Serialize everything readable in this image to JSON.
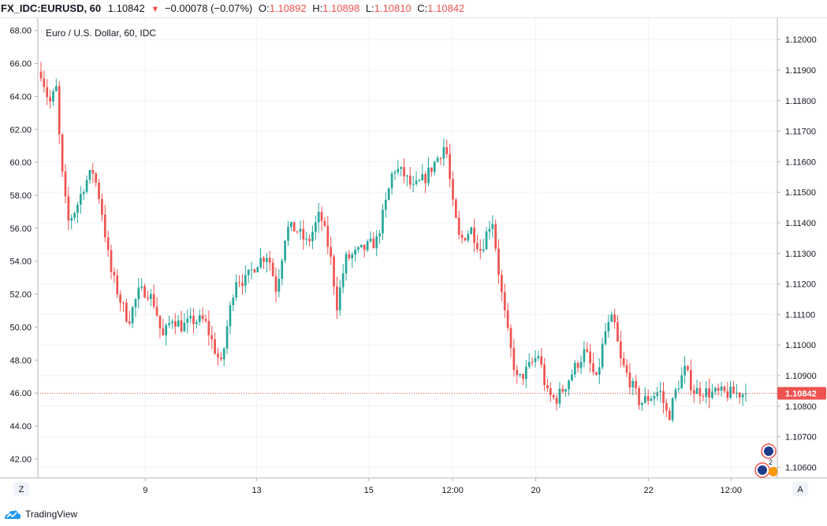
{
  "header": {
    "symbol": "FX_IDC:EURUSD, 60",
    "last": "1.10842",
    "change_arrow": "▼",
    "change": "−0.00078 (−0.07%)",
    "o_label": "O:",
    "o_value": "1.10892",
    "h_label": "H:",
    "h_value": "1.10898",
    "l_label": "L:",
    "l_value": "1.10810",
    "c_label": "C:",
    "c_value": "1.10842"
  },
  "chart_data": {
    "type": "candlestick",
    "title": "Euro / U.S. Dollar, 60, IDC",
    "y_right": {
      "ylim": [
        1.10565,
        1.1207
      ],
      "ticks": [
        "1.12000",
        "1.11900",
        "1.11800",
        "1.11700",
        "1.11600",
        "1.11500",
        "1.11400",
        "1.11300",
        "1.11200",
        "1.11100",
        "1.11000",
        "1.10900",
        "1.10800",
        "1.10700",
        "1.10600"
      ]
    },
    "y_left": {
      "ylim": [
        40.85,
        68.75
      ],
      "ticks": [
        "68.00",
        "66.00",
        "64.00",
        "62.00",
        "60.00",
        "58.00",
        "56.00",
        "54.00",
        "52.00",
        "50.00",
        "48.00",
        "46.00",
        "44.00",
        "42.00"
      ]
    },
    "x_ticks": [
      {
        "label": "9",
        "t": 0.148
      },
      {
        "label": "13",
        "t": 0.306
      },
      {
        "label": "15",
        "t": 0.465
      },
      {
        "label": "12:00",
        "t": 0.584
      },
      {
        "label": "20",
        "t": 0.702
      },
      {
        "label": "22",
        "t": 0.862
      },
      {
        "label": "12:00",
        "t": 0.979
      }
    ],
    "last_price": 1.10842,
    "last_price_label": "1.10842",
    "up_color": "#26a69a",
    "down_color": "#ef5350",
    "grid": true,
    "close_path": [
      [
        0.0,
        1.11895
      ],
      [
        0.012,
        1.1179
      ],
      [
        0.022,
        1.1184
      ],
      [
        0.028,
        1.116
      ],
      [
        0.038,
        1.114
      ],
      [
        0.05,
        1.1145
      ],
      [
        0.062,
        1.1153
      ],
      [
        0.074,
        1.1157
      ],
      [
        0.085,
        1.1146
      ],
      [
        0.098,
        1.1125
      ],
      [
        0.112,
        1.1115
      ],
      [
        0.124,
        1.1108
      ],
      [
        0.138,
        1.1117
      ],
      [
        0.15,
        1.1118
      ],
      [
        0.162,
        1.1113
      ],
      [
        0.172,
        1.1102
      ],
      [
        0.186,
        1.1109
      ],
      [
        0.2,
        1.1106
      ],
      [
        0.216,
        1.1108
      ],
      [
        0.232,
        1.1108
      ],
      [
        0.246,
        1.1099
      ],
      [
        0.256,
        1.1093
      ],
      [
        0.264,
        1.1106
      ],
      [
        0.276,
        1.1122
      ],
      [
        0.29,
        1.1121
      ],
      [
        0.306,
        1.1127
      ],
      [
        0.322,
        1.113
      ],
      [
        0.334,
        1.1118
      ],
      [
        0.348,
        1.1138
      ],
      [
        0.362,
        1.1138
      ],
      [
        0.378,
        1.1133
      ],
      [
        0.396,
        1.1143
      ],
      [
        0.41,
        1.113
      ],
      [
        0.42,
        1.1113
      ],
      [
        0.432,
        1.1128
      ],
      [
        0.448,
        1.113
      ],
      [
        0.462,
        1.1132
      ],
      [
        0.476,
        1.1134
      ],
      [
        0.49,
        1.1147
      ],
      [
        0.5,
        1.1158
      ],
      [
        0.514,
        1.1156
      ],
      [
        0.528,
        1.1151
      ],
      [
        0.546,
        1.1155
      ],
      [
        0.562,
        1.1161
      ],
      [
        0.574,
        1.1166
      ],
      [
        0.584,
        1.1146
      ],
      [
        0.594,
        1.1134
      ],
      [
        0.61,
        1.1138
      ],
      [
        0.624,
        1.1131
      ],
      [
        0.64,
        1.1142
      ],
      [
        0.652,
        1.1119
      ],
      [
        0.664,
        1.1101
      ],
      [
        0.676,
        1.1088
      ],
      [
        0.69,
        1.1092
      ],
      [
        0.706,
        1.1097
      ],
      [
        0.718,
        1.1084
      ],
      [
        0.73,
        1.1082
      ],
      [
        0.742,
        1.1086
      ],
      [
        0.756,
        1.1092
      ],
      [
        0.772,
        1.1098
      ],
      [
        0.788,
        1.1088
      ],
      [
        0.8,
        1.1104
      ],
      [
        0.812,
        1.1109
      ],
      [
        0.822,
        1.1095
      ],
      [
        0.836,
        1.1088
      ],
      [
        0.85,
        1.1081
      ],
      [
        0.864,
        1.1083
      ],
      [
        0.878,
        1.1085
      ],
      [
        0.89,
        1.1076
      ],
      [
        0.902,
        1.1086
      ],
      [
        0.914,
        1.1092
      ],
      [
        0.926,
        1.1085
      ],
      [
        0.938,
        1.1085
      ],
      [
        0.95,
        1.10842
      ]
    ]
  },
  "badges": {
    "count": "2"
  },
  "controls": {
    "zoom_label": "Z",
    "auto_label": "A"
  },
  "footer": {
    "brand": "TradingView"
  }
}
